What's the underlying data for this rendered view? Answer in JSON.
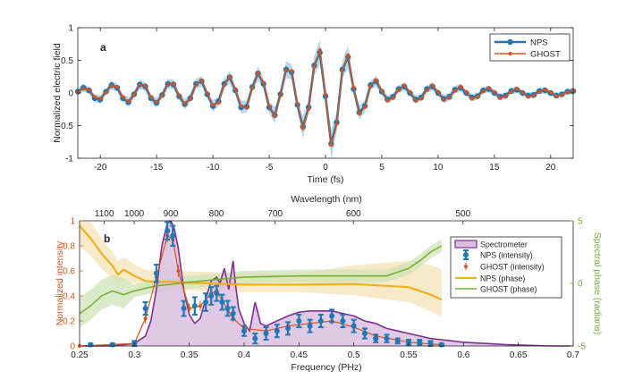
{
  "colors": {
    "nps": "#1f77b4",
    "ghost": "#d95319",
    "spectrometer_line": "#7e2f8e",
    "spectrometer_fill": "#d9bfe0",
    "nps_phase": "#edb120",
    "ghost_phase": "#77ac30",
    "nps_band": "#a9cde9",
    "phase_band_nps": "#f6e2b5",
    "phase_band_ghost": "#cfe3b5",
    "axis": "#262626"
  },
  "chart_data": [
    {
      "panel_label": "a",
      "type": "line",
      "xlabel": "Time (fs)",
      "ylabel": "Normalized electric field",
      "xlim": [
        -22,
        22
      ],
      "ylim": [
        -1,
        1
      ],
      "xticks": [
        -20,
        -15,
        -10,
        -5,
        0,
        5,
        10,
        15,
        20
      ],
      "yticks": [
        -1,
        -0.5,
        0,
        0.5,
        1
      ],
      "xtick_labels": [
        "-20",
        "-15",
        "-10",
        "-5",
        "0",
        "5",
        "10",
        "15",
        "20"
      ],
      "ytick_labels": [
        "-1",
        "-0.5",
        "0",
        "0.5",
        "1"
      ],
      "legend": [
        "NPS",
        "GHOST"
      ],
      "legend_position": "top-right",
      "series": [
        {
          "name": "NPS",
          "x": [
            -22,
            -21.5,
            -21,
            -20.5,
            -20,
            -19.5,
            -19,
            -18.5,
            -18,
            -17.5,
            -17,
            -16.5,
            -16,
            -15.5,
            -15,
            -14.5,
            -14,
            -13.5,
            -13,
            -12.5,
            -12,
            -11.5,
            -11,
            -10.5,
            -10,
            -9.5,
            -9,
            -8.5,
            -8,
            -7.5,
            -7,
            -6.5,
            -6,
            -5.5,
            -5,
            -4.5,
            -4,
            -3.5,
            -3,
            -2.5,
            -2,
            -1.5,
            -1,
            -0.5,
            0,
            0.5,
            1,
            1.5,
            2,
            2.5,
            3,
            3.5,
            4,
            4.5,
            5,
            5.5,
            6,
            6.5,
            7,
            7.5,
            8,
            8.5,
            9,
            9.5,
            10,
            10.5,
            11,
            11.5,
            12,
            12.5,
            13,
            13.5,
            14,
            14.5,
            15,
            15.5,
            16,
            16.5,
            17,
            17.5,
            18,
            18.5,
            19,
            19.5,
            20,
            20.5,
            21,
            21.5,
            22
          ],
          "y": [
            0.02,
            0.08,
            0.04,
            -0.08,
            -0.1,
            0.02,
            0.12,
            0.08,
            -0.08,
            -0.14,
            -0.02,
            0.13,
            0.1,
            -0.08,
            -0.15,
            -0.03,
            0.14,
            0.13,
            -0.05,
            -0.17,
            -0.08,
            0.14,
            0.18,
            -0.02,
            -0.2,
            -0.13,
            0.14,
            0.24,
            0.04,
            -0.22,
            -0.21,
            0.09,
            0.3,
            0.14,
            -0.22,
            -0.34,
            -0.02,
            0.36,
            0.32,
            -0.18,
            -0.52,
            -0.22,
            0.42,
            0.62,
            -0.05,
            -0.78,
            -0.45,
            0.36,
            0.55,
            0.06,
            -0.3,
            -0.2,
            0.12,
            0.18,
            0.02,
            -0.1,
            -0.06,
            0.06,
            0.1,
            0.0,
            -0.1,
            -0.07,
            0.06,
            0.1,
            0.0,
            -0.09,
            -0.06,
            0.05,
            0.08,
            0.0,
            -0.07,
            -0.05,
            0.04,
            0.06,
            0.0,
            -0.06,
            -0.04,
            0.03,
            0.05,
            0.0,
            -0.04,
            -0.03,
            0.03,
            0.04,
            0.0,
            -0.04,
            -0.02,
            0.02,
            0.03
          ]
        },
        {
          "name": "GHOST",
          "x": [
            -22,
            -21.5,
            -21,
            -20.5,
            -20,
            -19.5,
            -19,
            -18.5,
            -18,
            -17.5,
            -17,
            -16.5,
            -16,
            -15.5,
            -15,
            -14.5,
            -14,
            -13.5,
            -13,
            -12.5,
            -12,
            -11.5,
            -11,
            -10.5,
            -10,
            -9.5,
            -9,
            -8.5,
            -8,
            -7.5,
            -7,
            -6.5,
            -6,
            -5.5,
            -5,
            -4.5,
            -4,
            -3.5,
            -3,
            -2.5,
            -2,
            -1.5,
            -1,
            -0.5,
            0,
            0.5,
            1,
            1.5,
            2,
            2.5,
            3,
            3.5,
            4,
            4.5,
            5,
            5.5,
            6,
            6.5,
            7,
            7.5,
            8,
            8.5,
            9,
            9.5,
            10,
            10.5,
            11,
            11.5,
            12,
            12.5,
            13,
            13.5,
            14,
            14.5,
            15,
            15.5,
            16,
            16.5,
            17,
            17.5,
            18,
            18.5,
            19,
            19.5,
            20,
            20.5,
            21,
            21.5,
            22
          ],
          "y": [
            0.01,
            0.07,
            0.05,
            -0.06,
            -0.09,
            0.01,
            0.11,
            0.09,
            -0.06,
            -0.13,
            -0.03,
            0.12,
            0.11,
            -0.06,
            -0.14,
            -0.04,
            0.13,
            0.14,
            -0.03,
            -0.16,
            -0.09,
            0.12,
            0.19,
            0.0,
            -0.19,
            -0.15,
            0.12,
            0.25,
            0.06,
            -0.2,
            -0.23,
            0.07,
            0.31,
            0.16,
            -0.2,
            -0.36,
            -0.04,
            0.35,
            0.34,
            -0.16,
            -0.54,
            -0.25,
            0.4,
            0.66,
            -0.02,
            -0.8,
            -0.48,
            0.34,
            0.58,
            0.09,
            -0.32,
            -0.22,
            0.1,
            0.2,
            0.04,
            -0.12,
            -0.08,
            0.04,
            0.12,
            0.02,
            -0.12,
            -0.09,
            0.04,
            0.12,
            0.02,
            -0.11,
            -0.07,
            0.03,
            0.1,
            0.02,
            -0.09,
            -0.06,
            0.02,
            0.08,
            0.02,
            -0.08,
            -0.05,
            0.02,
            0.07,
            0.01,
            -0.06,
            -0.04,
            0.02,
            0.05,
            0.01,
            -0.05,
            -0.03,
            0.01,
            0.04
          ]
        }
      ]
    },
    {
      "panel_label": "b",
      "type": "area",
      "xlabel": "Frequency (PHz)",
      "ylabel": "Normalized intensity",
      "y2label": "Spectral phase (radians)",
      "top_axis_label": "Wavelength (nm)",
      "xlim": [
        0.25,
        0.7
      ],
      "ylim": [
        0,
        1
      ],
      "y2lim": [
        -5,
        5
      ],
      "xticks": [
        0.25,
        0.3,
        0.35,
        0.4,
        0.45,
        0.5,
        0.55,
        0.6,
        0.65,
        0.7
      ],
      "xtick_labels": [
        "0.25",
        "0.3",
        "0.35",
        "0.4",
        "0.45",
        "0.5",
        "0.55",
        "0.6",
        "0.65",
        "0.7"
      ],
      "yticks": [
        0,
        0.2,
        0.4,
        0.6,
        0.8,
        1
      ],
      "ytick_labels": [
        "0",
        "0.2",
        "0.4",
        "0.6",
        "0.8",
        "1"
      ],
      "y2ticks": [
        -5,
        0,
        5
      ],
      "y2tick_labels": [
        "-5",
        "0",
        "5"
      ],
      "top_ticks_nm": [
        1100,
        1000,
        900,
        800,
        700,
        600,
        500
      ],
      "top_tick_labels": [
        "1100",
        "1000",
        "900",
        "800",
        "700",
        "600",
        "500"
      ],
      "legend": [
        "Spectrometer",
        "NPS (intensity)",
        "GHOST (intensity)",
        "NPS (phase)",
        "GHOST (phase)"
      ],
      "legend_position": "right",
      "spectrometer": {
        "x": [
          0.25,
          0.28,
          0.3,
          0.31,
          0.315,
          0.32,
          0.325,
          0.33,
          0.333,
          0.336,
          0.34,
          0.345,
          0.35,
          0.355,
          0.36,
          0.365,
          0.37,
          0.375,
          0.378,
          0.382,
          0.386,
          0.39,
          0.392,
          0.395,
          0.4,
          0.405,
          0.41,
          0.415,
          0.42,
          0.43,
          0.44,
          0.45,
          0.46,
          0.47,
          0.48,
          0.49,
          0.5,
          0.51,
          0.52,
          0.53,
          0.54,
          0.55,
          0.56,
          0.57,
          0.58,
          0.6,
          0.62,
          0.64,
          0.66,
          0.68,
          0.7
        ],
        "y": [
          0.0,
          0.0,
          0.02,
          0.08,
          0.2,
          0.45,
          0.8,
          0.98,
          1.0,
          0.95,
          0.78,
          0.45,
          0.25,
          0.18,
          0.22,
          0.38,
          0.52,
          0.55,
          0.5,
          0.62,
          0.45,
          0.68,
          0.5,
          0.3,
          0.18,
          0.12,
          0.35,
          0.18,
          0.16,
          0.2,
          0.24,
          0.27,
          0.28,
          0.28,
          0.28,
          0.26,
          0.24,
          0.2,
          0.18,
          0.14,
          0.12,
          0.1,
          0.08,
          0.06,
          0.05,
          0.03,
          0.02,
          0.01,
          0.005,
          0.0,
          0.0
        ]
      },
      "nps_intensity": {
        "x": [
          0.26,
          0.28,
          0.3,
          0.31,
          0.32,
          0.33,
          0.335,
          0.345,
          0.355,
          0.365,
          0.37,
          0.375,
          0.38,
          0.385,
          0.39,
          0.4,
          0.41,
          0.42,
          0.43,
          0.44,
          0.45,
          0.46,
          0.47,
          0.48,
          0.49,
          0.5,
          0.51,
          0.52,
          0.53,
          0.54,
          0.55,
          0.56,
          0.57,
          0.58
        ],
        "y": [
          0.01,
          0.01,
          0.02,
          0.3,
          0.58,
          0.92,
          0.88,
          0.3,
          0.32,
          0.35,
          0.4,
          0.42,
          0.35,
          0.3,
          0.26,
          0.12,
          0.06,
          0.1,
          0.12,
          0.14,
          0.2,
          0.16,
          0.2,
          0.24,
          0.2,
          0.16,
          0.1,
          0.06,
          0.06,
          0.04,
          0.03,
          0.03,
          0.02,
          0.01
        ],
        "err": [
          0.01,
          0.01,
          0.02,
          0.05,
          0.07,
          0.07,
          0.08,
          0.06,
          0.07,
          0.07,
          0.07,
          0.06,
          0.06,
          0.06,
          0.05,
          0.04,
          0.04,
          0.05,
          0.05,
          0.05,
          0.05,
          0.05,
          0.05,
          0.05,
          0.05,
          0.05,
          0.04,
          0.03,
          0.03,
          0.02,
          0.02,
          0.02,
          0.02,
          0.01
        ]
      },
      "ghost_intensity": {
        "x": [
          0.25,
          0.3,
          0.31,
          0.32,
          0.33,
          0.335,
          0.34,
          0.35,
          0.36,
          0.37,
          0.375,
          0.38,
          0.39,
          0.4,
          0.42,
          0.44,
          0.46,
          0.48,
          0.5,
          0.52,
          0.55,
          0.58
        ],
        "y": [
          0.0,
          0.02,
          0.22,
          0.55,
          0.88,
          0.85,
          0.6,
          0.3,
          0.32,
          0.42,
          0.44,
          0.36,
          0.22,
          0.14,
          0.12,
          0.16,
          0.18,
          0.2,
          0.15,
          0.08,
          0.03,
          0.01
        ],
        "err": [
          0.01,
          0.02,
          0.04,
          0.05,
          0.05,
          0.05,
          0.05,
          0.04,
          0.04,
          0.04,
          0.04,
          0.04,
          0.03,
          0.03,
          0.03,
          0.03,
          0.03,
          0.03,
          0.03,
          0.02,
          0.02,
          0.01
        ]
      },
      "nps_phase": {
        "x": [
          0.25,
          0.26,
          0.27,
          0.28,
          0.285,
          0.29,
          0.3,
          0.31,
          0.32,
          0.33,
          0.35,
          0.37,
          0.4,
          0.45,
          0.5,
          0.55,
          0.56,
          0.57,
          0.58
        ],
        "y": [
          4.6,
          3.6,
          2.4,
          1.4,
          0.7,
          1.1,
          0.6,
          0.2,
          0.1,
          0.15,
          0.05,
          0.0,
          -0.1,
          -0.1,
          -0.05,
          -0.3,
          -0.6,
          -0.9,
          -1.3
        ]
      },
      "ghost_phase": {
        "x": [
          0.25,
          0.26,
          0.27,
          0.28,
          0.29,
          0.3,
          0.32,
          0.35,
          0.38,
          0.4,
          0.45,
          0.5,
          0.53,
          0.55,
          0.56,
          0.57,
          0.58
        ],
        "y": [
          -2.4,
          -1.8,
          -1.0,
          -0.6,
          -0.9,
          -0.6,
          -0.2,
          0.1,
          0.35,
          0.5,
          0.6,
          0.6,
          0.6,
          1.2,
          1.8,
          2.5,
          3.0
        ]
      }
    }
  ]
}
